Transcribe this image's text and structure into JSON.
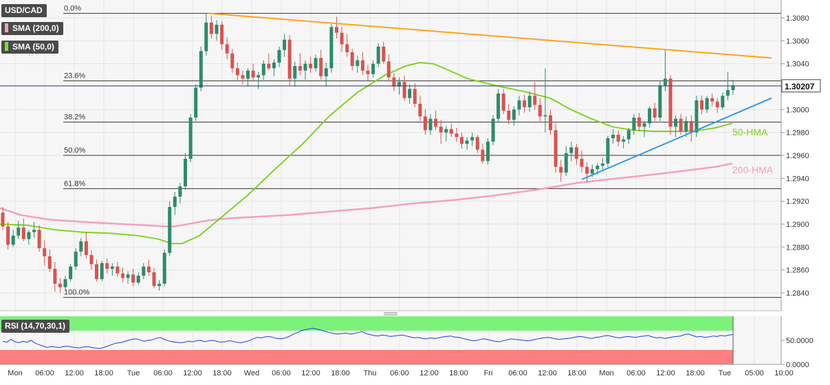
{
  "pair_label": "USD/CAD",
  "indicators": [
    {
      "label": "SMA (200,0)",
      "color": "#f7a1bd"
    },
    {
      "label": "SMA (50,0)",
      "color": "#7ddf2e"
    }
  ],
  "rsi_label": "RSI (14,70,30,1)",
  "last_price_label": "1.30207",
  "colors": {
    "up": "#2e8b6a",
    "down": "#d9534f",
    "sma200": "#f4a0bc",
    "sma50": "#7ed321",
    "resistance": "#ffa31a",
    "support": "#2e9be6",
    "rsi_line": "#1a3fd6",
    "rsi_over": "#7cf27a",
    "rsi_under": "#ff7f7f"
  },
  "chart_data": {
    "type": "candlestick",
    "title": "USD/CAD",
    "price_axis": {
      "min": 1.2825,
      "max": 1.3095,
      "ticks": [
        "1.3080",
        "1.3060",
        "1.3040",
        "1.3020",
        "1.3000",
        "1.2980",
        "1.2960",
        "1.2940",
        "1.2920",
        "1.2900",
        "1.2880",
        "1.2860",
        "1.2840"
      ]
    },
    "time_axis": [
      "Mon",
      "06:00",
      "12:00",
      "18:00",
      "Tue",
      "06:00",
      "12:00",
      "18:00",
      "Wed",
      "06:00",
      "12:00",
      "18:00",
      "Thu",
      "06:00",
      "12:00",
      "18:00",
      "Fri",
      "06:00",
      "12:00",
      "18:00",
      "Mon",
      "06:00",
      "12:00",
      "18:00",
      "Tue",
      "05:00",
      "10:00"
    ],
    "last_price": 1.30207,
    "fibonacci": [
      {
        "label": "0.0%",
        "price": 1.3084
      },
      {
        "label": "23.6%",
        "price": 1.3025
      },
      {
        "label": "38.2%",
        "price": 1.2989
      },
      {
        "label": "50.0%",
        "price": 1.296
      },
      {
        "label": "61.8%",
        "price": 1.2931
      },
      {
        "label": "100.0%",
        "price": 1.2836
      }
    ],
    "labels": {
      "sma50": "50-HMA",
      "sma200": "200-HMA"
    },
    "candles": [
      [
        1.291,
        1.2915,
        1.2895,
        1.2898
      ],
      [
        1.2898,
        1.2902,
        1.2878,
        1.2882
      ],
      [
        1.2882,
        1.2895,
        1.288,
        1.289
      ],
      [
        1.289,
        1.2903,
        1.2887,
        1.2897
      ],
      [
        1.2897,
        1.2905,
        1.2885,
        1.2887
      ],
      [
        1.2887,
        1.2895,
        1.2882,
        1.2893
      ],
      [
        1.2893,
        1.2902,
        1.2888,
        1.2895
      ],
      [
        1.2895,
        1.2899,
        1.2876,
        1.2879
      ],
      [
        1.2879,
        1.2886,
        1.2864,
        1.2872
      ],
      [
        1.2872,
        1.2878,
        1.2858,
        1.2861
      ],
      [
        1.2861,
        1.2867,
        1.2841,
        1.2848
      ],
      [
        1.2848,
        1.2853,
        1.284,
        1.2845
      ],
      [
        1.2845,
        1.2855,
        1.2842,
        1.2852
      ],
      [
        1.2852,
        1.2865,
        1.285,
        1.2863
      ],
      [
        1.2863,
        1.2879,
        1.286,
        1.2876
      ],
      [
        1.2876,
        1.2888,
        1.2872,
        1.2885
      ],
      [
        1.2885,
        1.2893,
        1.287,
        1.2873
      ],
      [
        1.2873,
        1.2877,
        1.286,
        1.2865
      ],
      [
        1.2865,
        1.2869,
        1.285,
        1.2852
      ],
      [
        1.2852,
        1.2868,
        1.285,
        1.2866
      ],
      [
        1.2866,
        1.287,
        1.2857,
        1.2861
      ],
      [
        1.2861,
        1.2866,
        1.2855,
        1.2863
      ],
      [
        1.2863,
        1.2867,
        1.2854,
        1.2857
      ],
      [
        1.2857,
        1.2862,
        1.2849,
        1.2853
      ],
      [
        1.2853,
        1.2859,
        1.2848,
        1.2856
      ],
      [
        1.2856,
        1.2861,
        1.2846,
        1.2849
      ],
      [
        1.2849,
        1.2858,
        1.2847,
        1.2855
      ],
      [
        1.2855,
        1.2866,
        1.2852,
        1.2863
      ],
      [
        1.2863,
        1.2869,
        1.2855,
        1.2858
      ],
      [
        1.2858,
        1.2862,
        1.2844,
        1.2846
      ],
      [
        1.2846,
        1.2851,
        1.2842,
        1.2848
      ],
      [
        1.2848,
        1.2878,
        1.2846,
        1.2875
      ],
      [
        1.2875,
        1.292,
        1.2872,
        1.2915
      ],
      [
        1.2915,
        1.2928,
        1.2908,
        1.2924
      ],
      [
        1.2924,
        1.2936,
        1.2918,
        1.2933
      ],
      [
        1.2933,
        1.2962,
        1.293,
        1.2957
      ],
      [
        1.2957,
        1.2996,
        1.2954,
        1.2993
      ],
      [
        1.2993,
        1.3022,
        1.299,
        1.3019
      ],
      [
        1.3019,
        1.3055,
        1.3016,
        1.3051
      ],
      [
        1.3051,
        1.3084,
        1.3047,
        1.3076
      ],
      [
        1.3076,
        1.3082,
        1.3062,
        1.3066
      ],
      [
        1.3066,
        1.3078,
        1.306,
        1.3074
      ],
      [
        1.3074,
        1.3077,
        1.3052,
        1.3057
      ],
      [
        1.3057,
        1.3063,
        1.3044,
        1.3049
      ],
      [
        1.3049,
        1.3053,
        1.3032,
        1.3036
      ],
      [
        1.3036,
        1.3041,
        1.3025,
        1.303
      ],
      [
        1.303,
        1.3034,
        1.3022,
        1.3027
      ],
      [
        1.3027,
        1.3036,
        1.302,
        1.3034
      ],
      [
        1.3034,
        1.304,
        1.3025,
        1.3028
      ],
      [
        1.3028,
        1.3033,
        1.3018,
        1.303
      ],
      [
        1.303,
        1.3043,
        1.3026,
        1.304
      ],
      [
        1.304,
        1.3049,
        1.3034,
        1.3036
      ],
      [
        1.3036,
        1.3044,
        1.3029,
        1.3041
      ],
      [
        1.3041,
        1.3055,
        1.3037,
        1.3052
      ],
      [
        1.3052,
        1.3066,
        1.3046,
        1.3061
      ],
      [
        1.3061,
        1.3065,
        1.3021,
        1.3027
      ],
      [
        1.3027,
        1.3042,
        1.302,
        1.3038
      ],
      [
        1.3038,
        1.3049,
        1.303,
        1.3034
      ],
      [
        1.3034,
        1.3043,
        1.3026,
        1.304
      ],
      [
        1.304,
        1.3046,
        1.3032,
        1.3036
      ],
      [
        1.3036,
        1.3048,
        1.3033,
        1.3045
      ],
      [
        1.3045,
        1.3052,
        1.3026,
        1.3029
      ],
      [
        1.3029,
        1.3041,
        1.302,
        1.3036
      ],
      [
        1.3036,
        1.3075,
        1.3032,
        1.3072
      ],
      [
        1.3072,
        1.3081,
        1.3062,
        1.3067
      ],
      [
        1.3067,
        1.3072,
        1.305,
        1.3057
      ],
      [
        1.3057,
        1.3066,
        1.3046,
        1.305
      ],
      [
        1.305,
        1.3053,
        1.3034,
        1.3038
      ],
      [
        1.3038,
        1.3047,
        1.3032,
        1.3043
      ],
      [
        1.3043,
        1.305,
        1.303,
        1.3034
      ],
      [
        1.3034,
        1.3039,
        1.3025,
        1.3031
      ],
      [
        1.3031,
        1.3043,
        1.3028,
        1.304
      ],
      [
        1.304,
        1.3058,
        1.3037,
        1.3055
      ],
      [
        1.3055,
        1.3059,
        1.304,
        1.3042
      ],
      [
        1.3042,
        1.3048,
        1.3025,
        1.3028
      ],
      [
        1.3028,
        1.3032,
        1.3016,
        1.302
      ],
      [
        1.302,
        1.3028,
        1.3013,
        1.3024
      ],
      [
        1.3024,
        1.303,
        1.3008,
        1.301
      ],
      [
        1.301,
        1.3022,
        1.3005,
        1.3018
      ],
      [
        1.3018,
        1.3023,
        1.3002,
        1.3005
      ],
      [
        1.3005,
        1.3012,
        1.299,
        1.2994
      ],
      [
        1.2994,
        1.3,
        1.2978,
        1.2982
      ],
      [
        1.2982,
        1.2996,
        1.2978,
        1.2992
      ],
      [
        1.2992,
        1.2999,
        1.2982,
        1.2985
      ],
      [
        1.2985,
        1.2991,
        1.297,
        1.298
      ],
      [
        1.298,
        1.2986,
        1.2972,
        1.2983
      ],
      [
        1.2983,
        1.2988,
        1.2976,
        1.2979
      ],
      [
        1.2979,
        1.2984,
        1.2972,
        1.2976
      ],
      [
        1.2976,
        1.298,
        1.2966,
        1.297
      ],
      [
        1.297,
        1.2976,
        1.2965,
        1.2973
      ],
      [
        1.2973,
        1.298,
        1.2968,
        1.2976
      ],
      [
        1.2976,
        1.2978,
        1.2962,
        1.2965
      ],
      [
        1.2965,
        1.297,
        1.2953,
        1.2955
      ],
      [
        1.2955,
        1.2975,
        1.2952,
        1.2972
      ],
      [
        1.2972,
        1.2995,
        1.2969,
        1.2992
      ],
      [
        1.2992,
        1.3018,
        1.2989,
        1.3014
      ],
      [
        1.3014,
        1.3018,
        1.2996,
        1.2999
      ],
      [
        1.2999,
        1.3005,
        1.2987,
        1.2991
      ],
      [
        1.2991,
        1.3003,
        1.2986,
        1.3
      ],
      [
        1.3,
        1.3012,
        1.2995,
        1.3008
      ],
      [
        1.3008,
        1.3013,
        1.2997,
        1.3002
      ],
      [
        1.3002,
        1.3016,
        1.2998,
        1.3012
      ],
      [
        1.3012,
        1.3024,
        1.3,
        1.3004
      ],
      [
        1.3004,
        1.301,
        1.299,
        1.2994
      ],
      [
        1.2994,
        1.3036,
        1.298,
        1.2995
      ],
      [
        1.2995,
        1.3,
        1.2978,
        1.2982
      ],
      [
        1.2982,
        1.2988,
        1.2945,
        1.295
      ],
      [
        1.295,
        1.2956,
        1.2937,
        1.2945
      ],
      [
        1.2945,
        1.2968,
        1.2942,
        1.2962
      ],
      [
        1.2962,
        1.2972,
        1.2955,
        1.2967
      ],
      [
        1.2967,
        1.297,
        1.2952,
        1.2957
      ],
      [
        1.2957,
        1.2964,
        1.2945,
        1.295
      ],
      [
        1.295,
        1.2954,
        1.2936,
        1.2944
      ],
      [
        1.2944,
        1.2952,
        1.2941,
        1.2948
      ],
      [
        1.2948,
        1.2953,
        1.2943,
        1.2951
      ],
      [
        1.2951,
        1.2958,
        1.2947,
        1.2953
      ],
      [
        1.2953,
        1.2977,
        1.295,
        1.2975
      ],
      [
        1.2975,
        1.2983,
        1.297,
        1.2978
      ],
      [
        1.2978,
        1.2982,
        1.2968,
        1.2972
      ],
      [
        1.2972,
        1.2977,
        1.2966,
        1.2974
      ],
      [
        1.2974,
        1.2984,
        1.297,
        1.2982
      ],
      [
        1.2982,
        1.2996,
        1.2978,
        1.2993
      ],
      [
        1.2993,
        1.2997,
        1.2981,
        1.2985
      ],
      [
        1.2985,
        1.299,
        1.2976,
        1.2988
      ],
      [
        1.2988,
        1.3003,
        1.2984,
        1.3001
      ],
      [
        1.3001,
        1.3006,
        1.299,
        1.2993
      ],
      [
        1.2993,
        1.3025,
        1.299,
        1.3021
      ],
      [
        1.3021,
        1.3052,
        1.3016,
        1.3027
      ],
      [
        1.3027,
        1.303,
        1.2978,
        1.2985
      ],
      [
        1.2985,
        1.2995,
        1.2976,
        1.2992
      ],
      [
        1.2992,
        1.2996,
        1.2978,
        1.2981
      ],
      [
        1.2981,
        1.2994,
        1.2976,
        1.299
      ],
      [
        1.299,
        1.2995,
        1.2972,
        1.298
      ],
      [
        1.298,
        1.3012,
        1.2976,
        1.3008
      ],
      [
        1.3008,
        1.3012,
        1.2996,
        1.3
      ],
      [
        1.3,
        1.3012,
        1.2997,
        1.301
      ],
      [
        1.301,
        1.3014,
        1.3003,
        1.3007
      ],
      [
        1.3007,
        1.301,
        1.2997,
        1.3002
      ],
      [
        1.3002,
        1.3015,
        1.3,
        1.3012
      ],
      [
        1.3012,
        1.3033,
        1.3008,
        1.3017
      ],
      [
        1.3017,
        1.3026,
        1.3013,
        1.3021
      ]
    ],
    "sma200": [
      [
        0,
        1.2914
      ],
      [
        30,
        1.2908
      ],
      [
        70,
        1.2904
      ],
      [
        120,
        1.2902
      ],
      [
        180,
        1.29
      ],
      [
        240,
        1.2898
      ],
      [
        255,
        1.2898
      ],
      [
        300,
        1.2903
      ],
      [
        330,
        1.2905
      ],
      [
        360,
        1.2906
      ],
      [
        420,
        1.2908
      ],
      [
        480,
        1.2911
      ],
      [
        540,
        1.2914
      ],
      [
        600,
        1.2918
      ],
      [
        660,
        1.2921
      ],
      [
        720,
        1.2925
      ],
      [
        780,
        1.293
      ],
      [
        840,
        1.2936
      ],
      [
        900,
        1.294
      ],
      [
        960,
        1.2944
      ],
      [
        1000,
        1.2947
      ],
      [
        1040,
        1.295
      ],
      [
        1065,
        1.2953
      ]
    ],
    "sma50": [
      [
        0,
        1.29
      ],
      [
        40,
        1.2899
      ],
      [
        80,
        1.2895
      ],
      [
        120,
        1.2893
      ],
      [
        160,
        1.2892
      ],
      [
        200,
        1.289
      ],
      [
        230,
        1.2887
      ],
      [
        250,
        1.2883
      ],
      [
        265,
        1.2883
      ],
      [
        290,
        1.289
      ],
      [
        320,
        1.2905
      ],
      [
        360,
        1.2925
      ],
      [
        400,
        1.2948
      ],
      [
        440,
        1.297
      ],
      [
        480,
        1.2995
      ],
      [
        520,
        1.3015
      ],
      [
        560,
        1.303
      ],
      [
        590,
        1.3038
      ],
      [
        610,
        1.3041
      ],
      [
        630,
        1.304
      ],
      [
        650,
        1.3035
      ],
      [
        680,
        1.3027
      ],
      [
        720,
        1.3021
      ],
      [
        760,
        1.3016
      ],
      [
        800,
        1.301
      ],
      [
        830,
        1.3
      ],
      [
        860,
        1.2992
      ],
      [
        890,
        1.2985
      ],
      [
        920,
        1.2982
      ],
      [
        950,
        1.2981
      ],
      [
        980,
        1.2981
      ],
      [
        1000,
        1.2981
      ],
      [
        1020,
        1.2982
      ],
      [
        1040,
        1.2984
      ],
      [
        1065,
        1.2988
      ]
    ],
    "resistance_line": [
      [
        302,
        1.3084
      ],
      [
        1122,
        1.3045
      ]
    ],
    "support_line": [
      [
        846,
        1.2939
      ],
      [
        1122,
        1.301
      ]
    ],
    "rsi": {
      "ylim": [
        0,
        100
      ],
      "ticks": [
        "50.0000",
        "0.0000"
      ],
      "overbought": 70,
      "oversold": 30,
      "values": [
        48,
        46,
        52,
        47,
        45,
        48,
        46,
        50,
        44,
        41,
        38,
        35,
        37,
        36,
        35,
        37,
        38,
        36,
        35,
        34,
        36,
        37,
        35,
        34,
        33,
        35,
        38,
        41,
        44,
        45,
        47,
        50,
        52,
        53,
        51,
        48,
        50,
        51,
        54,
        56,
        52,
        49,
        47,
        46,
        45,
        46,
        48,
        47,
        49,
        50,
        47,
        49,
        50,
        48,
        46,
        47,
        49,
        48,
        46,
        45,
        47,
        49,
        53,
        56,
        55,
        57,
        58,
        56,
        54,
        53,
        55,
        58,
        63,
        66,
        70,
        72,
        74,
        75,
        73,
        71,
        68,
        66,
        64,
        63,
        64,
        65,
        63,
        64,
        66,
        68,
        64,
        62,
        60,
        59,
        61,
        60,
        58,
        59,
        60,
        61,
        59,
        57,
        55,
        56,
        54,
        53,
        55,
        54,
        55,
        57,
        58,
        59,
        57,
        56,
        54,
        52,
        50,
        49,
        51,
        53,
        52,
        50,
        48,
        47,
        49,
        51,
        53,
        52,
        51,
        50,
        49,
        50,
        52,
        54,
        55,
        56,
        55,
        53,
        52,
        53,
        54,
        55,
        57,
        58,
        57,
        55,
        54,
        56,
        57,
        59,
        60,
        58,
        56,
        55,
        57,
        58,
        57,
        56,
        58,
        59,
        60,
        57,
        55,
        56,
        54,
        55,
        57,
        58,
        59,
        62,
        63,
        60,
        57,
        58,
        56,
        57,
        59,
        58,
        60,
        59,
        61,
        62
      ]
    }
  }
}
